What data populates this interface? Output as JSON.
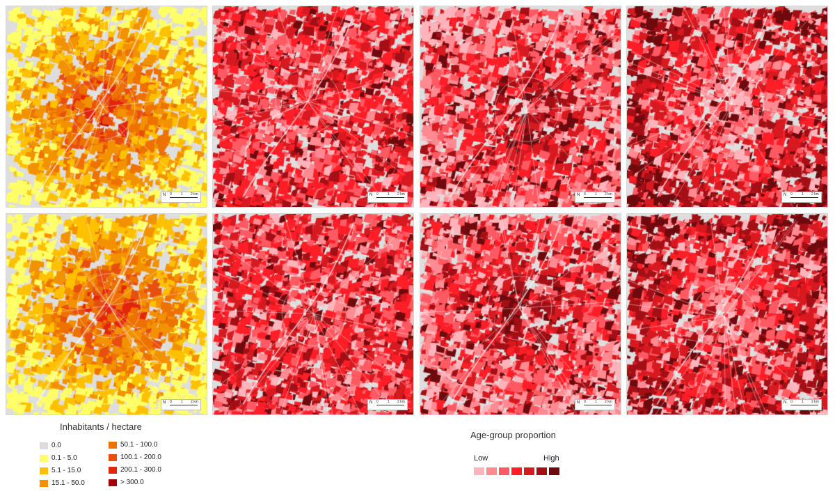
{
  "maps": [
    {
      "id": "r1c1",
      "scheme": "density",
      "scale": {
        "north": "N",
        "ticks": [
          "0",
          "1",
          "2 km"
        ]
      }
    },
    {
      "id": "r1c2",
      "scheme": "age",
      "scale": {
        "north": "N",
        "ticks": [
          "0",
          "1",
          "2 km"
        ]
      }
    },
    {
      "id": "r1c3",
      "scheme": "age",
      "scale": {
        "north": "N",
        "ticks": [
          "0",
          "1",
          "2 km"
        ]
      }
    },
    {
      "id": "r1c4",
      "scheme": "age",
      "scale": {
        "north": "N",
        "ticks": [
          "0",
          "1",
          "2 km"
        ]
      }
    },
    {
      "id": "r2c1",
      "scheme": "density",
      "scale": {
        "north": "N",
        "ticks": [
          "0",
          "1",
          "2 km"
        ]
      }
    },
    {
      "id": "r2c2",
      "scheme": "age",
      "scale": {
        "north": "N",
        "ticks": [
          "0",
          "1",
          "2 km"
        ]
      }
    },
    {
      "id": "r2c3",
      "scheme": "age",
      "scale": {
        "north": "N",
        "ticks": [
          "0",
          "1",
          "2 km"
        ]
      }
    },
    {
      "id": "r2c4",
      "scheme": "age",
      "scale": {
        "north": "N",
        "ticks": [
          "0",
          "1",
          "2 km"
        ]
      }
    }
  ],
  "density_legend": {
    "title": "Inhabitants / hectare",
    "classes": [
      {
        "label": "0.0",
        "color": "#dcdcdc"
      },
      {
        "label": "0.1 - 5.0",
        "color": "#ffff66"
      },
      {
        "label": "5.1 - 15.0",
        "color": "#ffc000"
      },
      {
        "label": "15.1 - 50.0",
        "color": "#f39200"
      },
      {
        "label": "50.1 - 100.0",
        "color": "#ee7200"
      },
      {
        "label": "100.1 - 200.0",
        "color": "#e84e0f"
      },
      {
        "label": "200.1 - 300.0",
        "color": "#e3250c"
      },
      {
        "label": "> 300.0",
        "color": "#a3000b"
      }
    ]
  },
  "age_legend": {
    "title": "Age-group proportion",
    "low_label": "Low",
    "high_label": "High",
    "colors": [
      "#ffb3ba",
      "#ff8a91",
      "#ff5a63",
      "#ff1e27",
      "#d71920",
      "#a40f16",
      "#6e0a0e"
    ]
  }
}
